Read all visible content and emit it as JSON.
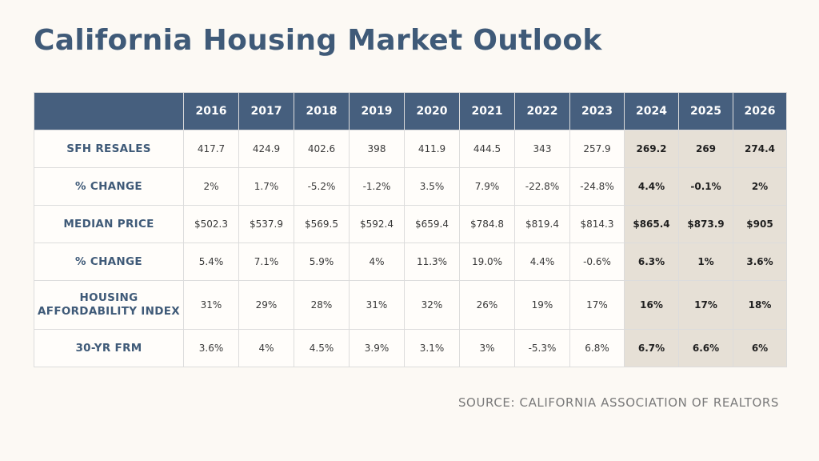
{
  "title": "California Housing Market Outlook",
  "source": "SOURCE: CALIFORNIA ASSOCIATION OF REALTORS",
  "colors": {
    "header_bg": "#465f7e",
    "title": "#3f5a78",
    "forecast_bg": "#e6e0d6",
    "background": "#fcf9f4"
  },
  "chart_data": {
    "type": "table",
    "title": "California Housing Market Outlook",
    "columns": [
      "2016",
      "2017",
      "2018",
      "2019",
      "2020",
      "2021",
      "2022",
      "2023",
      "2024",
      "2025",
      "2026"
    ],
    "forecast_columns": [
      "2024",
      "2025",
      "2026"
    ],
    "rows": [
      {
        "label": "SFH RESALES",
        "values": [
          "417.7",
          "424.9",
          "402.6",
          "398",
          "411.9",
          "444.5",
          "343",
          "257.9",
          "269.2",
          "269",
          "274.4"
        ]
      },
      {
        "label": "% CHANGE",
        "values": [
          "2%",
          "1.7%",
          "-5.2%",
          "-1.2%",
          "3.5%",
          "7.9%",
          "-22.8%",
          "-24.8%",
          "4.4%",
          "-0.1%",
          "2%"
        ]
      },
      {
        "label": "MEDIAN PRICE",
        "values": [
          "$502.3",
          "$537.9",
          "$569.5",
          "$592.4",
          "$659.4",
          "$784.8",
          "$819.4",
          "$814.3",
          "$865.4",
          "$873.9",
          "$905"
        ]
      },
      {
        "label": "% CHANGE",
        "values": [
          "5.4%",
          "7.1%",
          "5.9%",
          "4%",
          "11.3%",
          "19.0%",
          "4.4%",
          "-0.6%",
          "6.3%",
          "1%",
          "3.6%"
        ]
      },
      {
        "label_lines": [
          "HOUSING",
          "AFFORDABILITY INDEX"
        ],
        "values": [
          "31%",
          "29%",
          "28%",
          "31%",
          "32%",
          "26%",
          "19%",
          "17%",
          "16%",
          "17%",
          "18%"
        ]
      },
      {
        "label": "30-YR FRM",
        "values": [
          "3.6%",
          "4%",
          "4.5%",
          "3.9%",
          "3.1%",
          "3%",
          "-5.3%",
          "6.8%",
          "6.7%",
          "6.6%",
          "6%"
        ]
      }
    ]
  }
}
